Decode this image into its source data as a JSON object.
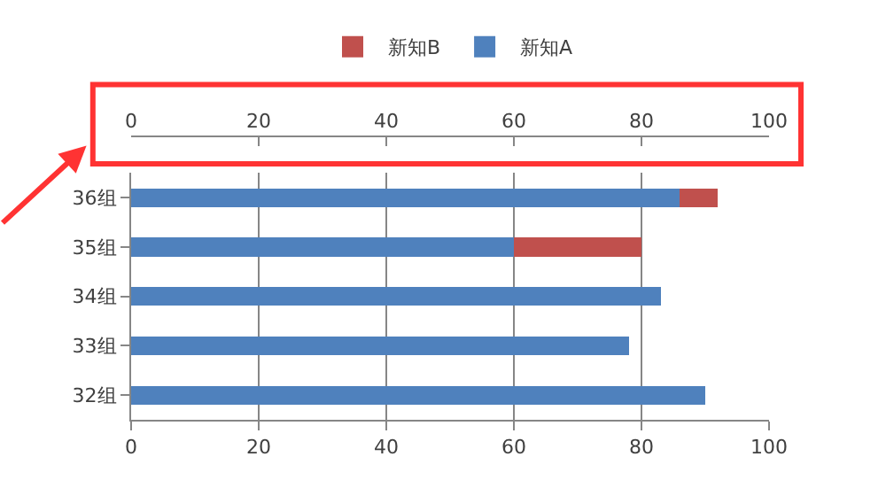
{
  "chart_data": {
    "type": "bar",
    "orientation": "horizontal",
    "stacked": true,
    "categories": [
      "36组",
      "35组",
      "34组",
      "33组",
      "32组"
    ],
    "series": [
      {
        "name": "新知A",
        "color": "#4f81bd",
        "values": [
          86,
          60,
          83,
          78,
          90
        ]
      },
      {
        "name": "新知B",
        "color": "#c0504d",
        "values": [
          6,
          20,
          null,
          null,
          null
        ]
      }
    ],
    "xlim": [
      0,
      100
    ],
    "xticks": [
      0,
      20,
      40,
      60,
      80,
      100
    ],
    "x2lim": [
      0,
      100
    ],
    "x2ticks": [
      0,
      20,
      40,
      60,
      80,
      100
    ],
    "grid": "x",
    "legend": "top"
  }
}
